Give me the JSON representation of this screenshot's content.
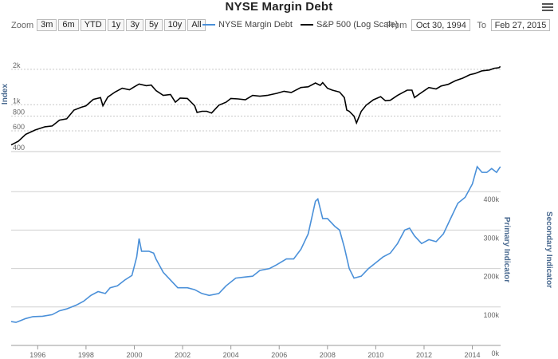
{
  "title": "NYSE Margin Debt",
  "zoom": {
    "label": "Zoom",
    "buttons": [
      "3m",
      "6m",
      "YTD",
      "1y",
      "3y",
      "5y",
      "10y",
      "All"
    ]
  },
  "legend": [
    {
      "name": "NYSE Margin Debt",
      "color": "#4a90d9"
    },
    {
      "name": "S&P 500 (Log Scale)",
      "color": "#000000"
    }
  ],
  "range": {
    "from_label": "From",
    "from_value": "Oct 30, 1994",
    "to_label": "To",
    "to_value": "Feb 27, 2015"
  },
  "chart_data": {
    "type": "line",
    "x_ticks": [
      "1996",
      "1998",
      "2000",
      "2002",
      "2004",
      "2006",
      "2008",
      "2010",
      "2012",
      "2014"
    ],
    "top_panel": {
      "series_name": "S&P 500 (Log Scale)",
      "ylabel": "Index",
      "scale": "log",
      "y_ticks": [
        "2k",
        "1k",
        "800",
        "600",
        "400"
      ],
      "points": [
        [
          1994.9,
          455
        ],
        [
          1995.2,
          490
        ],
        [
          1995.5,
          560
        ],
        [
          1995.9,
          610
        ],
        [
          1996.3,
          650
        ],
        [
          1996.6,
          660
        ],
        [
          1996.9,
          740
        ],
        [
          1997.2,
          760
        ],
        [
          1997.5,
          900
        ],
        [
          1997.8,
          950
        ],
        [
          1998.0,
          980
        ],
        [
          1998.3,
          1110
        ],
        [
          1998.6,
          1150
        ],
        [
          1998.7,
          980
        ],
        [
          1998.9,
          1160
        ],
        [
          1999.2,
          1280
        ],
        [
          1999.5,
          1380
        ],
        [
          1999.8,
          1340
        ],
        [
          2000.0,
          1420
        ],
        [
          2000.2,
          1500
        ],
        [
          2000.5,
          1450
        ],
        [
          2000.7,
          1470
        ],
        [
          2000.9,
          1320
        ],
        [
          2001.2,
          1200
        ],
        [
          2001.5,
          1220
        ],
        [
          2001.7,
          1050
        ],
        [
          2001.9,
          1140
        ],
        [
          2002.2,
          1130
        ],
        [
          2002.5,
          980
        ],
        [
          2002.6,
          860
        ],
        [
          2002.8,
          880
        ],
        [
          2003.0,
          880
        ],
        [
          2003.2,
          850
        ],
        [
          2003.5,
          990
        ],
        [
          2003.8,
          1050
        ],
        [
          2004.0,
          1130
        ],
        [
          2004.3,
          1120
        ],
        [
          2004.6,
          1100
        ],
        [
          2004.9,
          1200
        ],
        [
          2005.2,
          1180
        ],
        [
          2005.5,
          1200
        ],
        [
          2005.9,
          1250
        ],
        [
          2006.2,
          1300
        ],
        [
          2006.5,
          1270
        ],
        [
          2006.9,
          1400
        ],
        [
          2007.2,
          1420
        ],
        [
          2007.5,
          1530
        ],
        [
          2007.7,
          1460
        ],
        [
          2007.8,
          1540
        ],
        [
          2008.0,
          1380
        ],
        [
          2008.2,
          1330
        ],
        [
          2008.5,
          1280
        ],
        [
          2008.7,
          1150
        ],
        [
          2008.8,
          900
        ],
        [
          2008.9,
          880
        ],
        [
          2009.1,
          800
        ],
        [
          2009.2,
          700
        ],
        [
          2009.4,
          880
        ],
        [
          2009.6,
          990
        ],
        [
          2009.9,
          1100
        ],
        [
          2010.2,
          1170
        ],
        [
          2010.4,
          1080
        ],
        [
          2010.6,
          1090
        ],
        [
          2010.9,
          1200
        ],
        [
          2011.3,
          1330
        ],
        [
          2011.5,
          1330
        ],
        [
          2011.6,
          1150
        ],
        [
          2011.8,
          1230
        ],
        [
          2012.2,
          1400
        ],
        [
          2012.5,
          1360
        ],
        [
          2012.7,
          1440
        ],
        [
          2013.0,
          1490
        ],
        [
          2013.3,
          1600
        ],
        [
          2013.6,
          1680
        ],
        [
          2013.9,
          1800
        ],
        [
          2014.1,
          1840
        ],
        [
          2014.4,
          1940
        ],
        [
          2014.7,
          1970
        ],
        [
          2014.9,
          2040
        ],
        [
          2015.1,
          2060
        ],
        [
          2015.16,
          2110
        ]
      ]
    },
    "bottom_panel": {
      "series_name": "NYSE Margin Debt",
      "ylabel": "Primary Indicator",
      "ylabel2": "Secondary Indicator",
      "ylim": [
        0,
        500000
      ],
      "y_ticks": [
        "0k",
        "100k",
        "200k",
        "300k",
        "400k"
      ],
      "points": [
        [
          1994.9,
          62000
        ],
        [
          1995.1,
          60000
        ],
        [
          1995.3,
          65000
        ],
        [
          1995.5,
          70000
        ],
        [
          1995.8,
          75000
        ],
        [
          1996.2,
          76000
        ],
        [
          1996.6,
          80000
        ],
        [
          1996.9,
          90000
        ],
        [
          1997.2,
          95000
        ],
        [
          1997.6,
          105000
        ],
        [
          1997.9,
          115000
        ],
        [
          1998.2,
          130000
        ],
        [
          1998.5,
          140000
        ],
        [
          1998.8,
          135000
        ],
        [
          1999.0,
          150000
        ],
        [
          1999.3,
          155000
        ],
        [
          1999.6,
          170000
        ],
        [
          1999.9,
          182000
        ],
        [
          2000.1,
          230000
        ],
        [
          2000.2,
          278000
        ],
        [
          2000.3,
          245000
        ],
        [
          2000.6,
          245000
        ],
        [
          2000.8,
          240000
        ],
        [
          2000.9,
          225000
        ],
        [
          2001.2,
          190000
        ],
        [
          2001.5,
          170000
        ],
        [
          2001.8,
          150000
        ],
        [
          2002.2,
          150000
        ],
        [
          2002.5,
          145000
        ],
        [
          2002.8,
          135000
        ],
        [
          2003.1,
          130000
        ],
        [
          2003.5,
          135000
        ],
        [
          2003.8,
          155000
        ],
        [
          2004.2,
          175000
        ],
        [
          2004.6,
          178000
        ],
        [
          2004.9,
          180000
        ],
        [
          2005.2,
          195000
        ],
        [
          2005.6,
          200000
        ],
        [
          2005.9,
          210000
        ],
        [
          2006.3,
          225000
        ],
        [
          2006.6,
          225000
        ],
        [
          2006.9,
          250000
        ],
        [
          2007.2,
          290000
        ],
        [
          2007.5,
          375000
        ],
        [
          2007.6,
          381000
        ],
        [
          2007.8,
          330000
        ],
        [
          2008.0,
          330000
        ],
        [
          2008.3,
          310000
        ],
        [
          2008.5,
          300000
        ],
        [
          2008.7,
          255000
        ],
        [
          2008.9,
          200000
        ],
        [
          2009.1,
          175000
        ],
        [
          2009.4,
          180000
        ],
        [
          2009.7,
          200000
        ],
        [
          2010.0,
          215000
        ],
        [
          2010.3,
          230000
        ],
        [
          2010.6,
          240000
        ],
        [
          2010.9,
          265000
        ],
        [
          2011.2,
          300000
        ],
        [
          2011.4,
          305000
        ],
        [
          2011.6,
          285000
        ],
        [
          2011.9,
          265000
        ],
        [
          2012.2,
          275000
        ],
        [
          2012.5,
          270000
        ],
        [
          2012.8,
          290000
        ],
        [
          2013.1,
          330000
        ],
        [
          2013.4,
          370000
        ],
        [
          2013.7,
          385000
        ],
        [
          2014.0,
          420000
        ],
        [
          2014.2,
          465000
        ],
        [
          2014.4,
          450000
        ],
        [
          2014.6,
          450000
        ],
        [
          2014.8,
          460000
        ],
        [
          2015.0,
          450000
        ],
        [
          2015.16,
          465000
        ]
      ]
    }
  }
}
